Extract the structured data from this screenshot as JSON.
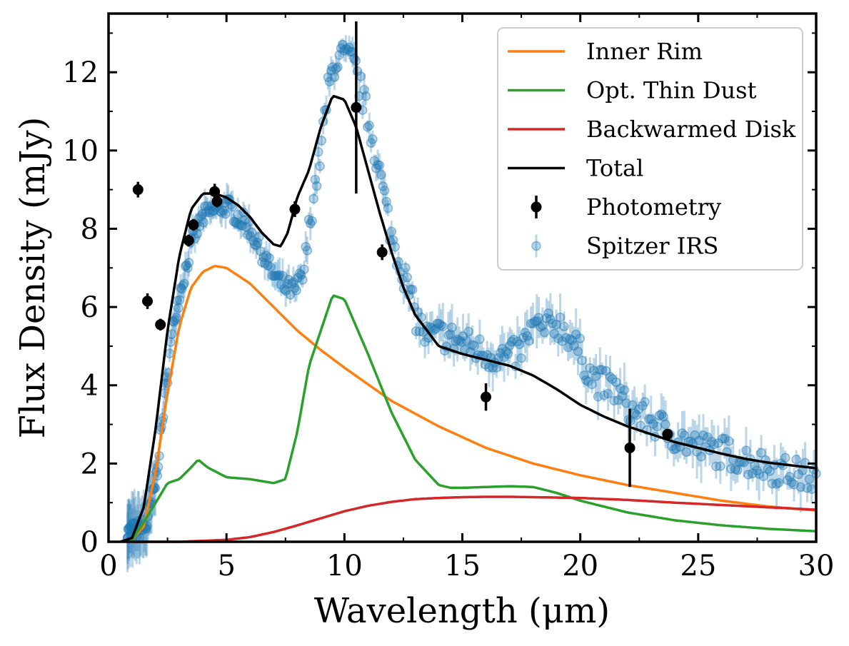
{
  "chart_data": {
    "type": "line",
    "xlabel": "Wavelength (μm)",
    "ylabel": "Flux Density (mJy)",
    "xlim": [
      0,
      30
    ],
    "ylim": [
      0,
      13.5
    ],
    "xticks": [
      0,
      5,
      10,
      15,
      20,
      25,
      30
    ],
    "yticks": [
      0,
      2,
      4,
      6,
      8,
      10,
      12
    ],
    "grid": false,
    "legend_position": "top-right",
    "colors": {
      "inner_rim": "#ff7f0e",
      "thin_dust": "#2ca02c",
      "backwarmed": "#d62728",
      "total": "#000000",
      "photometry": "#000000",
      "irs": "#1f77b4"
    },
    "series": [
      {
        "name": "Inner Rim",
        "key": "inner_rim",
        "x": [
          0.5,
          1.0,
          1.5,
          2.0,
          2.5,
          3.0,
          3.5,
          4.0,
          4.5,
          5.0,
          6.0,
          7.0,
          8.0,
          9.0,
          10.0,
          12.0,
          14.0,
          16.0,
          18.0,
          20.0,
          22.0,
          24.0,
          26.0,
          28.0,
          30.0
        ],
        "y": [
          0.0,
          0.05,
          0.4,
          1.8,
          3.8,
          5.5,
          6.5,
          6.9,
          7.05,
          7.0,
          6.6,
          6.0,
          5.4,
          4.9,
          4.45,
          3.6,
          2.95,
          2.4,
          2.0,
          1.7,
          1.45,
          1.25,
          1.05,
          0.9,
          0.8
        ]
      },
      {
        "name": "Opt. Thin Dust",
        "key": "thin_dust",
        "x": [
          0.5,
          1.0,
          1.5,
          2.0,
          2.5,
          3.0,
          3.5,
          3.8,
          4.2,
          5.0,
          6.0,
          7.0,
          7.5,
          8.0,
          8.5,
          9.0,
          9.5,
          10.0,
          10.5,
          11.0,
          12.0,
          13.0,
          14.0,
          14.5,
          15.0,
          16.0,
          17.0,
          18.0,
          19.0,
          20.0,
          22.0,
          24.0,
          26.0,
          28.0,
          30.0
        ],
        "y": [
          0.0,
          0.05,
          0.5,
          1.0,
          1.5,
          1.6,
          1.9,
          2.1,
          1.9,
          1.65,
          1.6,
          1.5,
          1.6,
          2.8,
          4.5,
          5.4,
          6.3,
          6.2,
          5.5,
          4.8,
          3.3,
          2.1,
          1.45,
          1.38,
          1.38,
          1.4,
          1.42,
          1.4,
          1.25,
          1.05,
          0.75,
          0.55,
          0.42,
          0.33,
          0.27
        ]
      },
      {
        "name": "Backwarmed Disk",
        "key": "backwarmed",
        "x": [
          1.0,
          3.0,
          5.0,
          6.0,
          7.0,
          8.0,
          9.0,
          10.0,
          11.0,
          12.0,
          13.0,
          14.0,
          15.0,
          16.0,
          17.0,
          18.0,
          19.0,
          20.0,
          22.0,
          24.0,
          26.0,
          28.0,
          30.0
        ],
        "y": [
          0.0,
          0.0,
          0.05,
          0.12,
          0.25,
          0.42,
          0.6,
          0.78,
          0.92,
          1.02,
          1.09,
          1.12,
          1.14,
          1.15,
          1.15,
          1.14,
          1.13,
          1.12,
          1.07,
          1.0,
          0.94,
          0.88,
          0.82
        ]
      },
      {
        "name": "Total",
        "key": "total",
        "x": [
          0.5,
          1.0,
          1.5,
          2.0,
          2.5,
          3.0,
          3.5,
          4.0,
          4.5,
          5.0,
          5.5,
          6.0,
          6.5,
          7.0,
          7.3,
          7.6,
          8.0,
          8.5,
          9.0,
          9.5,
          10.0,
          10.5,
          11.0,
          11.5,
          12.0,
          12.5,
          13.0,
          14.0,
          15.0,
          16.0,
          17.0,
          18.0,
          19.0,
          20.0,
          21.0,
          22.0,
          23.0,
          24.0,
          25.0,
          26.0,
          27.0,
          28.0,
          29.0,
          30.0
        ],
        "y": [
          0.0,
          0.1,
          0.9,
          2.9,
          5.4,
          7.3,
          8.5,
          8.9,
          8.9,
          8.8,
          8.6,
          8.3,
          7.9,
          7.6,
          7.55,
          7.9,
          8.8,
          9.5,
          10.6,
          11.4,
          11.3,
          10.6,
          9.5,
          8.4,
          7.4,
          6.5,
          5.8,
          5.0,
          4.8,
          4.65,
          4.5,
          4.25,
          3.9,
          3.5,
          3.2,
          2.95,
          2.75,
          2.55,
          2.4,
          2.25,
          2.12,
          2.02,
          1.95,
          1.88
        ]
      }
    ],
    "photometry": {
      "name": "Photometry",
      "points": [
        {
          "x": 1.25,
          "y": 9.0,
          "err": 0.2
        },
        {
          "x": 1.65,
          "y": 6.15,
          "err": 0.2
        },
        {
          "x": 2.2,
          "y": 5.55,
          "err": 0.15
        },
        {
          "x": 3.4,
          "y": 7.7,
          "err": 0.15
        },
        {
          "x": 3.6,
          "y": 8.1,
          "err": 0.15
        },
        {
          "x": 4.5,
          "y": 8.95,
          "err": 0.2
        },
        {
          "x": 4.6,
          "y": 8.7,
          "err": 0.15
        },
        {
          "x": 7.9,
          "y": 8.5,
          "err": 0.2
        },
        {
          "x": 10.5,
          "y": 11.1,
          "err": 2.2
        },
        {
          "x": 11.6,
          "y": 7.4,
          "err": 0.2
        },
        {
          "x": 16.0,
          "y": 3.7,
          "err": 0.35
        },
        {
          "x": 22.1,
          "y": 2.4,
          "err": 1.0
        },
        {
          "x": 23.7,
          "y": 2.75,
          "err": 0.1
        }
      ]
    },
    "irs": {
      "name": "Spitzer IRS",
      "anchors_x": [
        0.8,
        1.2,
        1.6,
        2.0,
        2.4,
        2.8,
        3.2,
        3.6,
        4.0,
        4.5,
        5.0,
        5.5,
        6.0,
        6.5,
        7.0,
        7.5,
        8.0,
        8.3,
        8.6,
        9.0,
        9.3,
        9.6,
        10.0,
        10.4,
        10.8,
        11.2,
        11.6,
        12.0,
        12.5,
        13.0,
        13.5,
        14.0,
        15.0,
        16.0,
        17.0,
        17.5,
        18.0,
        18.5,
        19.0,
        19.5,
        20.0,
        20.5,
        21.0,
        21.5,
        22.0,
        23.0,
        24.0,
        25.0,
        26.0,
        27.0,
        28.0,
        29.0,
        30.0
      ],
      "anchors_y": [
        0.2,
        0.3,
        0.4,
        1.5,
        3.8,
        5.8,
        6.8,
        7.8,
        8.3,
        8.5,
        8.6,
        8.3,
        8.0,
        7.4,
        6.8,
        6.5,
        6.4,
        6.9,
        8.5,
        10.0,
        11.5,
        12.3,
        12.4,
        12.2,
        11.3,
        10.3,
        9.1,
        7.8,
        6.9,
        5.8,
        5.2,
        5.3,
        5.1,
        4.8,
        4.7,
        4.9,
        5.5,
        5.4,
        5.6,
        5.3,
        4.8,
        4.2,
        4.0,
        3.9,
        3.4,
        3.1,
        2.7,
        2.4,
        2.3,
        2.1,
        1.9,
        1.75,
        1.6
      ],
      "wavelength_start": 0.8,
      "wavelength_end": 30.0,
      "n_points": 420
    },
    "legend": [
      {
        "label": "Inner Rim",
        "key": "inner_rim",
        "kind": "line"
      },
      {
        "label": "Opt. Thin Dust",
        "key": "thin_dust",
        "kind": "line"
      },
      {
        "label": "Backwarmed Disk",
        "key": "backwarmed",
        "kind": "line"
      },
      {
        "label": "Total",
        "key": "total",
        "kind": "line"
      },
      {
        "label": "Photometry",
        "key": "photometry",
        "kind": "errorbar-dark"
      },
      {
        "label": "Spitzer IRS",
        "key": "irs",
        "kind": "errorbar-light"
      }
    ]
  }
}
